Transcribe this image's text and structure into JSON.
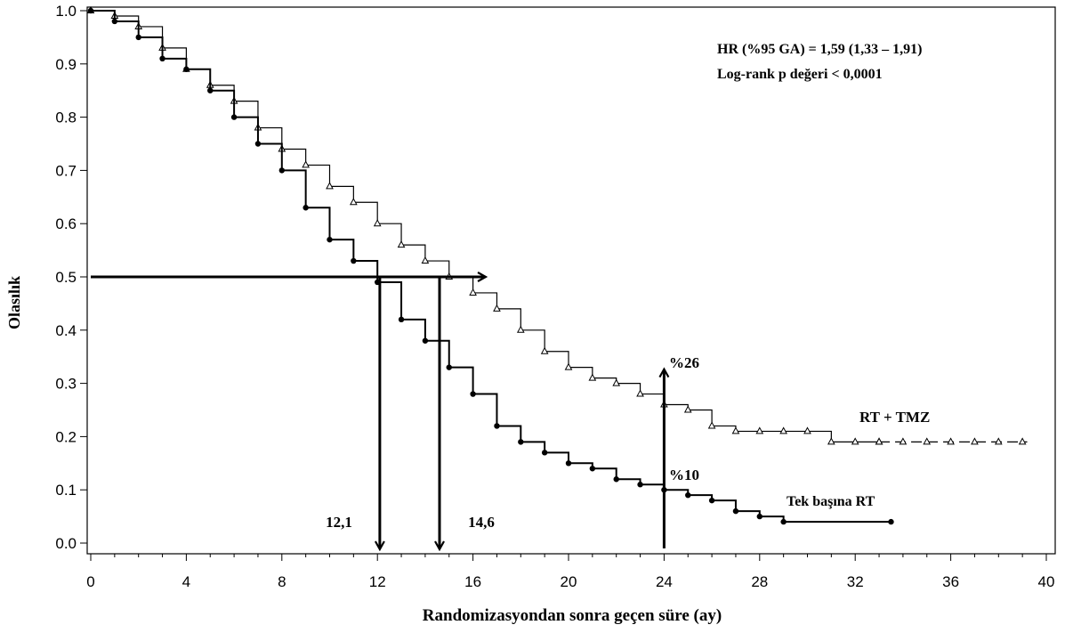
{
  "chart_data": {
    "type": "line",
    "title": "",
    "xlabel": "Randomizasyondan  sonra geçen süre (ay)",
    "ylabel": "Olasılık",
    "xlim": [
      0,
      40
    ],
    "ylim": [
      0,
      1.0
    ],
    "xticks": [
      "0",
      "4",
      "8",
      "12",
      "16",
      "20",
      "24",
      "28",
      "32",
      "36",
      "40"
    ],
    "yticks": [
      "0.0",
      "0.1",
      "0.2",
      "0.3",
      "0.4",
      "0.5",
      "0.6",
      "0.7",
      "0.8",
      "0.9",
      "1.0"
    ],
    "series": [
      {
        "name": "RT + TMZ",
        "marker": "open-triangle",
        "x": [
          0,
          1,
          2,
          3,
          4,
          5,
          6,
          7,
          8,
          9,
          10,
          11,
          12,
          13,
          14,
          15,
          16,
          17,
          18,
          19,
          20,
          21,
          22,
          23,
          24,
          25,
          26,
          27,
          28,
          29,
          30,
          31,
          32,
          33
        ],
        "y": [
          1.0,
          0.99,
          0.97,
          0.93,
          0.89,
          0.86,
          0.83,
          0.78,
          0.74,
          0.71,
          0.67,
          0.64,
          0.6,
          0.56,
          0.53,
          0.5,
          0.47,
          0.44,
          0.4,
          0.36,
          0.33,
          0.31,
          0.3,
          0.28,
          0.26,
          0.25,
          0.22,
          0.21,
          0.21,
          0.21,
          0.21,
          0.19,
          0.19,
          0.19
        ],
        "censor_tail_x": [
          33,
          39.2
        ],
        "censor_tail_y": 0.19
      },
      {
        "name": "Tek başına RT",
        "marker": "filled-circle",
        "x": [
          0,
          1,
          2,
          3,
          4,
          5,
          6,
          7,
          8,
          9,
          10,
          11,
          12,
          13,
          14,
          15,
          16,
          17,
          18,
          19,
          20,
          21,
          22,
          23,
          24,
          25,
          26,
          27,
          28,
          29,
          33.5
        ],
        "y": [
          1.0,
          0.98,
          0.95,
          0.91,
          0.89,
          0.85,
          0.8,
          0.75,
          0.7,
          0.63,
          0.57,
          0.53,
          0.49,
          0.42,
          0.38,
          0.33,
          0.28,
          0.22,
          0.19,
          0.17,
          0.15,
          0.14,
          0.12,
          0.11,
          0.1,
          0.09,
          0.08,
          0.06,
          0.05,
          0.04,
          0.04
        ]
      }
    ],
    "annotations": {
      "hr": "HR (%95 GA) = 1,59 (1,33 – 1,91)",
      "logrank": "Log-rank p değeri < 0,0001",
      "median_rt": "12,1",
      "median_tmz": "14,6",
      "pct_tmz": "%26",
      "pct_rt": "%10",
      "label_tmz": "RT + TMZ",
      "label_rt": "Tek başına RT",
      "median_rt_x": 12.1,
      "median_tmz_x": 14.6,
      "half_level": 0.5,
      "survival_24_tmz": 0.26,
      "survival_24_rt": 0.1,
      "landmark_x": 24
    },
    "grid": false,
    "legend": "inline labels"
  }
}
